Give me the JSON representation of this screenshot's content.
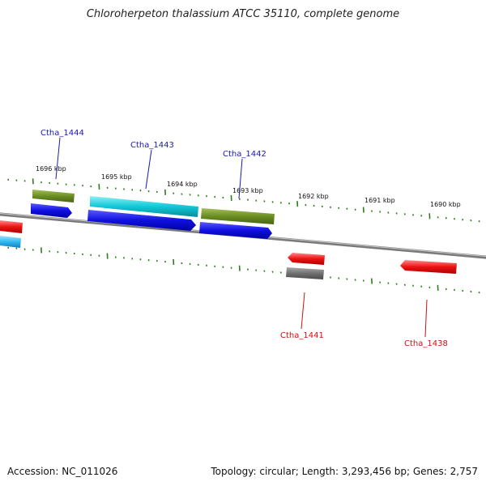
{
  "title": "Chloroherpeton thalassium ATCC 35110, complete genome",
  "footer": {
    "accession": "Accession: NC_011026",
    "summary": "Topology: circular; Length: 3,293,456 bp; Genes: 2,757"
  },
  "colors": {
    "backbone": "#8a8a8a",
    "tick": "#2e7d1f",
    "forward_label": "#1a1aaa",
    "reverse_label": "#cc1111",
    "gene_blue": "#1010e0",
    "gene_cyan": "#10c8d8",
    "gene_olive": "#6b8e23",
    "gene_red": "#ee1111",
    "gene_gray": "#707070"
  },
  "scale_labels": [
    "1696 kbp",
    "1695 kbp",
    "1694 kbp",
    "1693 kbp",
    "1692 kbp",
    "1691 kbp",
    "1690 kbp"
  ],
  "gene_labels": [
    {
      "name": "Ctha_1444",
      "strand": "forward"
    },
    {
      "name": "Ctha_1443",
      "strand": "forward"
    },
    {
      "name": "Ctha_1442",
      "strand": "forward"
    },
    {
      "name": "Ctha_1441",
      "strand": "reverse"
    },
    {
      "name": "Ctha_1438",
      "strand": "reverse"
    }
  ]
}
